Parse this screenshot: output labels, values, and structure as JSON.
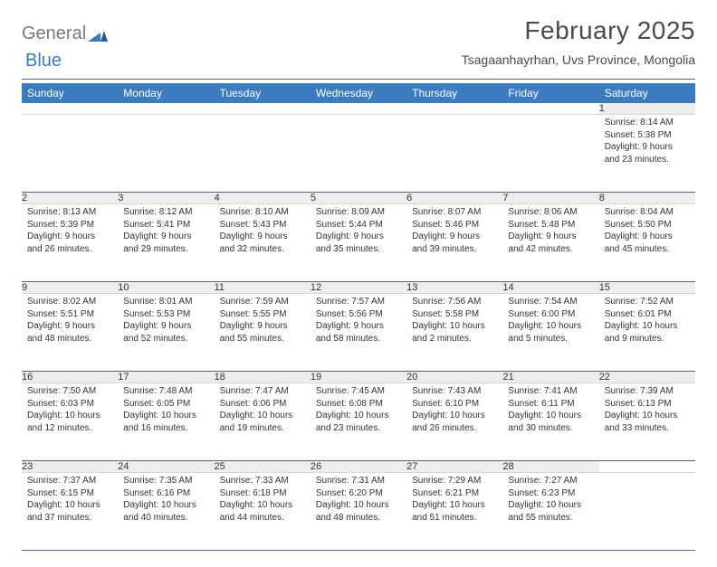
{
  "logo": {
    "text1": "General",
    "text2": "Blue"
  },
  "title": "February 2025",
  "location": "Tsagaanhayrhan, Uvs Province, Mongolia",
  "colors": {
    "header_bg": "#3b7bbf",
    "header_text": "#ffffff",
    "daynum_bg": "#ededed",
    "divider": "#4a6a8a",
    "text": "#333333",
    "logo_gray": "#7a7a7a",
    "logo_blue": "#3b7bbf",
    "page_bg": "#ffffff"
  },
  "typography": {
    "title_fontsize": 28,
    "location_fontsize": 14,
    "day_header_fontsize": 12,
    "daynum_fontsize": 11,
    "body_fontsize": 10
  },
  "day_headers": [
    "Sunday",
    "Monday",
    "Tuesday",
    "Wednesday",
    "Thursday",
    "Friday",
    "Saturday"
  ],
  "weeks": [
    [
      null,
      null,
      null,
      null,
      null,
      null,
      {
        "n": "1",
        "sunrise": "Sunrise: 8:14 AM",
        "sunset": "Sunset: 5:38 PM",
        "day1": "Daylight: 9 hours",
        "day2": "and 23 minutes."
      }
    ],
    [
      {
        "n": "2",
        "sunrise": "Sunrise: 8:13 AM",
        "sunset": "Sunset: 5:39 PM",
        "day1": "Daylight: 9 hours",
        "day2": "and 26 minutes."
      },
      {
        "n": "3",
        "sunrise": "Sunrise: 8:12 AM",
        "sunset": "Sunset: 5:41 PM",
        "day1": "Daylight: 9 hours",
        "day2": "and 29 minutes."
      },
      {
        "n": "4",
        "sunrise": "Sunrise: 8:10 AM",
        "sunset": "Sunset: 5:43 PM",
        "day1": "Daylight: 9 hours",
        "day2": "and 32 minutes."
      },
      {
        "n": "5",
        "sunrise": "Sunrise: 8:09 AM",
        "sunset": "Sunset: 5:44 PM",
        "day1": "Daylight: 9 hours",
        "day2": "and 35 minutes."
      },
      {
        "n": "6",
        "sunrise": "Sunrise: 8:07 AM",
        "sunset": "Sunset: 5:46 PM",
        "day1": "Daylight: 9 hours",
        "day2": "and 39 minutes."
      },
      {
        "n": "7",
        "sunrise": "Sunrise: 8:06 AM",
        "sunset": "Sunset: 5:48 PM",
        "day1": "Daylight: 9 hours",
        "day2": "and 42 minutes."
      },
      {
        "n": "8",
        "sunrise": "Sunrise: 8:04 AM",
        "sunset": "Sunset: 5:50 PM",
        "day1": "Daylight: 9 hours",
        "day2": "and 45 minutes."
      }
    ],
    [
      {
        "n": "9",
        "sunrise": "Sunrise: 8:02 AM",
        "sunset": "Sunset: 5:51 PM",
        "day1": "Daylight: 9 hours",
        "day2": "and 48 minutes."
      },
      {
        "n": "10",
        "sunrise": "Sunrise: 8:01 AM",
        "sunset": "Sunset: 5:53 PM",
        "day1": "Daylight: 9 hours",
        "day2": "and 52 minutes."
      },
      {
        "n": "11",
        "sunrise": "Sunrise: 7:59 AM",
        "sunset": "Sunset: 5:55 PM",
        "day1": "Daylight: 9 hours",
        "day2": "and 55 minutes."
      },
      {
        "n": "12",
        "sunrise": "Sunrise: 7:57 AM",
        "sunset": "Sunset: 5:56 PM",
        "day1": "Daylight: 9 hours",
        "day2": "and 58 minutes."
      },
      {
        "n": "13",
        "sunrise": "Sunrise: 7:56 AM",
        "sunset": "Sunset: 5:58 PM",
        "day1": "Daylight: 10 hours",
        "day2": "and 2 minutes."
      },
      {
        "n": "14",
        "sunrise": "Sunrise: 7:54 AM",
        "sunset": "Sunset: 6:00 PM",
        "day1": "Daylight: 10 hours",
        "day2": "and 5 minutes."
      },
      {
        "n": "15",
        "sunrise": "Sunrise: 7:52 AM",
        "sunset": "Sunset: 6:01 PM",
        "day1": "Daylight: 10 hours",
        "day2": "and 9 minutes."
      }
    ],
    [
      {
        "n": "16",
        "sunrise": "Sunrise: 7:50 AM",
        "sunset": "Sunset: 6:03 PM",
        "day1": "Daylight: 10 hours",
        "day2": "and 12 minutes."
      },
      {
        "n": "17",
        "sunrise": "Sunrise: 7:48 AM",
        "sunset": "Sunset: 6:05 PM",
        "day1": "Daylight: 10 hours",
        "day2": "and 16 minutes."
      },
      {
        "n": "18",
        "sunrise": "Sunrise: 7:47 AM",
        "sunset": "Sunset: 6:06 PM",
        "day1": "Daylight: 10 hours",
        "day2": "and 19 minutes."
      },
      {
        "n": "19",
        "sunrise": "Sunrise: 7:45 AM",
        "sunset": "Sunset: 6:08 PM",
        "day1": "Daylight: 10 hours",
        "day2": "and 23 minutes."
      },
      {
        "n": "20",
        "sunrise": "Sunrise: 7:43 AM",
        "sunset": "Sunset: 6:10 PM",
        "day1": "Daylight: 10 hours",
        "day2": "and 26 minutes."
      },
      {
        "n": "21",
        "sunrise": "Sunrise: 7:41 AM",
        "sunset": "Sunset: 6:11 PM",
        "day1": "Daylight: 10 hours",
        "day2": "and 30 minutes."
      },
      {
        "n": "22",
        "sunrise": "Sunrise: 7:39 AM",
        "sunset": "Sunset: 6:13 PM",
        "day1": "Daylight: 10 hours",
        "day2": "and 33 minutes."
      }
    ],
    [
      {
        "n": "23",
        "sunrise": "Sunrise: 7:37 AM",
        "sunset": "Sunset: 6:15 PM",
        "day1": "Daylight: 10 hours",
        "day2": "and 37 minutes."
      },
      {
        "n": "24",
        "sunrise": "Sunrise: 7:35 AM",
        "sunset": "Sunset: 6:16 PM",
        "day1": "Daylight: 10 hours",
        "day2": "and 40 minutes."
      },
      {
        "n": "25",
        "sunrise": "Sunrise: 7:33 AM",
        "sunset": "Sunset: 6:18 PM",
        "day1": "Daylight: 10 hours",
        "day2": "and 44 minutes."
      },
      {
        "n": "26",
        "sunrise": "Sunrise: 7:31 AM",
        "sunset": "Sunset: 6:20 PM",
        "day1": "Daylight: 10 hours",
        "day2": "and 48 minutes."
      },
      {
        "n": "27",
        "sunrise": "Sunrise: 7:29 AM",
        "sunset": "Sunset: 6:21 PM",
        "day1": "Daylight: 10 hours",
        "day2": "and 51 minutes."
      },
      {
        "n": "28",
        "sunrise": "Sunrise: 7:27 AM",
        "sunset": "Sunset: 6:23 PM",
        "day1": "Daylight: 10 hours",
        "day2": "and 55 minutes."
      },
      null
    ]
  ]
}
